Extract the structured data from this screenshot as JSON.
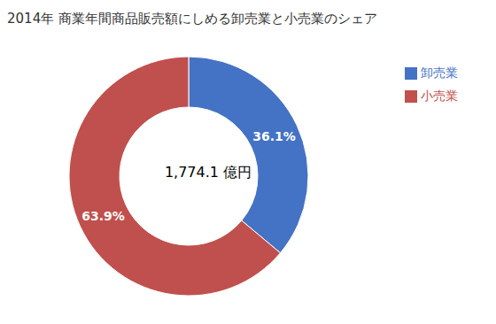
{
  "chart_data": {
    "type": "pie",
    "title": "2014年 商業年間商品販売額にしめる卸売業と小売業のシェア",
    "categories": [
      "卸売業",
      "小売業"
    ],
    "values": [
      36.1,
      63.9
    ],
    "value_labels": [
      "36.1%",
      "63.9%"
    ],
    "colors": [
      "#4472C4",
      "#C0504D"
    ],
    "data_labels": true,
    "annotation": "1,774.1 億円",
    "legend": "upper right"
  }
}
